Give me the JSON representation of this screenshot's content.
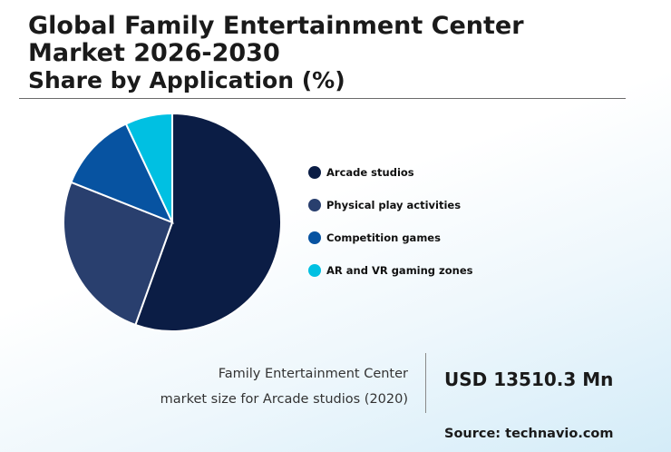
{
  "header": {
    "title_line1": "Global Family Entertainment Center",
    "title_line2": "Market 2026-2030",
    "subtitle": "Share by Application (%)"
  },
  "chart_data": {
    "type": "pie",
    "categories": [
      "Arcade studios",
      "Physical play activities",
      "Competition games",
      "AR and VR gaming zones"
    ],
    "values": [
      55.5,
      25.5,
      12,
      7
    ],
    "colors": [
      "#0b1d45",
      "#293f6e",
      "#0753a1",
      "#00c0e2"
    ],
    "legend_position": "right"
  },
  "highlight": {
    "caption_line1": "Family Entertainment Center",
    "caption_line2": "market size for Arcade studios (2020)",
    "value": "USD 13510.3 Mn"
  },
  "source": "Source: technavio.com"
}
